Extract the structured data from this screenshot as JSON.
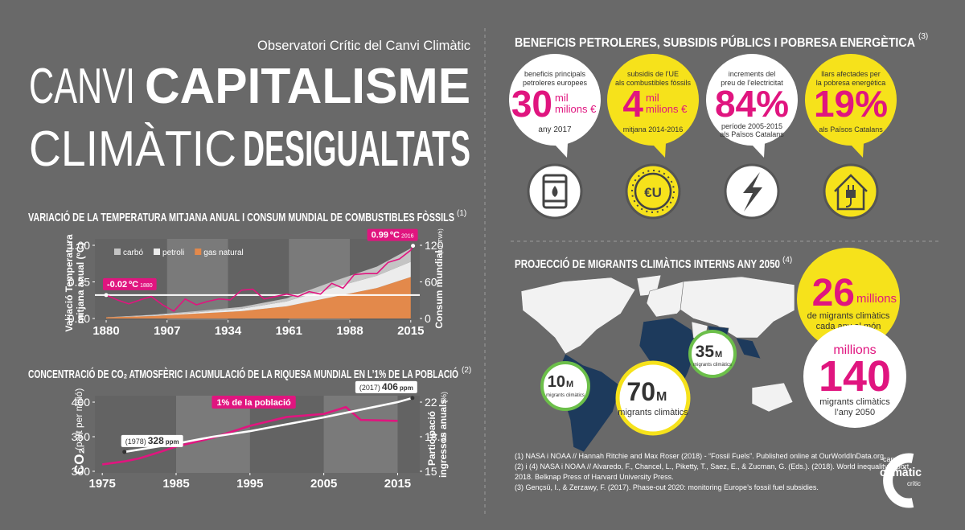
{
  "header": {
    "organization": "Observatori Crític del Canvi Climàtic",
    "words": [
      "CANVI",
      "CAPITALISME",
      "CLIMÀTIC",
      "DESIGUALTATS"
    ]
  },
  "chart_data": [
    {
      "type": "line",
      "title": "VARIACIÓ DE LA TEMPERATURA MITJANA ANUAL I CONSUM MUNDIAL DE COMBUSTIBLES FÒSSILS",
      "note": "(1)",
      "y_label": [
        "Variació Temperatura",
        "mitjana anual (ºC)"
      ],
      "y2_label": "Consum mundial",
      "y2_unit": "(10³ TWh)",
      "xlim": [
        1875,
        2019
      ],
      "xticks": [
        1880,
        1907,
        1934,
        1961,
        1988,
        2015
      ],
      "ylim": [
        -0.5,
        1.0
      ],
      "yticks": [
        {
          "value": -0.5,
          "label": "-0.50"
        },
        0.25,
        {
          "value": 1.0,
          "label": "1.00"
        }
      ],
      "y2lim": [
        0,
        120
      ],
      "y2ticks": [
        0,
        60,
        120
      ],
      "reference_line": true,
      "series": [
        {
          "name": "carbó",
          "type": "area",
          "axis": "y2",
          "color": "#c4c4c4",
          "x": [
            1880,
            1900,
            1920,
            1940,
            1960,
            1980,
            2000,
            2015
          ],
          "values": [
            0,
            1,
            2,
            3,
            5,
            10,
            15,
            22
          ]
        },
        {
          "name": "petroli",
          "type": "area",
          "axis": "y2",
          "color": "#ececec",
          "x": [
            1880,
            1900,
            1920,
            1940,
            1960,
            1980,
            2000,
            2015
          ],
          "values": [
            0,
            1,
            2,
            4,
            8,
            15,
            20,
            25
          ]
        },
        {
          "name": "gas natural",
          "type": "area",
          "axis": "y2",
          "color": "#e3894b",
          "x": [
            1880,
            1900,
            1920,
            1940,
            1960,
            1980,
            2000,
            2015
          ],
          "values": [
            2,
            4,
            8,
            12,
            20,
            35,
            50,
            68
          ]
        },
        {
          "type": "line",
          "color": "#e0157f",
          "x": [
            1880,
            1885,
            1890,
            1895,
            1900,
            1905,
            1910,
            1915,
            1920,
            1925,
            1930,
            1935,
            1940,
            1945,
            1950,
            1955,
            1960,
            1965,
            1970,
            1975,
            1980,
            1985,
            1990,
            1995,
            2000,
            2005,
            2010,
            2015,
            2016
          ],
          "values": [
            -0.02,
            -0.12,
            -0.2,
            -0.12,
            -0.05,
            -0.22,
            -0.35,
            -0.1,
            -0.22,
            -0.15,
            -0.1,
            -0.12,
            0.08,
            0.1,
            -0.1,
            -0.05,
            0.0,
            -0.05,
            0.05,
            0.0,
            0.22,
            0.12,
            0.4,
            0.42,
            0.42,
            0.65,
            0.72,
            0.9,
            0.99
          ]
        }
      ],
      "annotations": [
        {
          "value": -0.02,
          "unit": "ºC",
          "x": 1880
        },
        {
          "value": 0.99,
          "unit": "ºC",
          "x": 2016
        }
      ]
    },
    {
      "type": "line",
      "title": "CONCENTRACIÓ DE CO₂ ATMOSFÈRIC I ACUMULACIÓ DE LA RIQUESA MUNDIAL EN L’1% DE LA POBLACIÓ",
      "note": "(2)",
      "y_label": "CO₂",
      "y_unit": "(part per milió)",
      "y2_label": [
        "Participació",
        "ingressos anuals"
      ],
      "y2_unit": "(%)",
      "xlim": [
        1974,
        2018
      ],
      "xticks": [
        1975,
        1985,
        1995,
        2005,
        2015
      ],
      "ylim": [
        300,
        400
      ],
      "yticks": [
        300,
        350,
        400
      ],
      "y2lim": [
        15,
        22
      ],
      "y2ticks": [
        15,
        18.5,
        22
      ],
      "series": [
        {
          "name": "1% de la població",
          "type": "line",
          "axis": "y2",
          "color": "#e0157f",
          "x": [
            1975,
            1978,
            1980,
            1983,
            1985,
            1990,
            1995,
            2000,
            2005,
            2008,
            2010,
            2015
          ],
          "values": [
            15.7,
            16,
            16.3,
            17,
            17.5,
            18.4,
            19.6,
            20.5,
            20.8,
            21.5,
            20.2,
            20.1
          ]
        },
        {
          "type": "line",
          "color": "#ffffff",
          "x": [
            1978,
            1985,
            1990,
            1995,
            2000,
            2005,
            2010,
            2015,
            2017
          ],
          "values": [
            328,
            340,
            350,
            358,
            368,
            378,
            389,
            400,
            406
          ]
        }
      ],
      "annotations": [
        {
          "x_label": "(1978)",
          "value": 328,
          "unit": "ppm",
          "x": 1978
        },
        {
          "x_label": "(2017)",
          "value": 406,
          "unit": "ppm",
          "x": 2017
        }
      ]
    }
  ],
  "benefits": {
    "title": "BENEFICIS PETROLERES, SUBSIDIS PÚBLICS I POBRESA ENERGÈTICA",
    "note": "(3)",
    "stats": [
      {
        "caption": [
          "beneficis principals",
          "petroleres europees"
        ],
        "number": "30",
        "unit": [
          "mil",
          "milions €"
        ],
        "detail": [
          "any 2017"
        ]
      },
      {
        "caption": [
          "subsidis de l’UE",
          "als combustibles fòssils"
        ],
        "number": "4",
        "unit": [
          "mil",
          "milions €"
        ],
        "detail": [
          "mitjana 2014-2016"
        ]
      },
      {
        "caption": [
          "increments del",
          "preu de l’electricitat"
        ],
        "number": "84%",
        "detail": [
          "període 2005-2015",
          "als Països Catalans"
        ]
      },
      {
        "caption": [
          "llars afectades per",
          "la pobresa energètica"
        ],
        "number": "19%",
        "detail": [
          "als Països Catalans"
        ]
      }
    ],
    "coin_label": "€U"
  },
  "migration": {
    "title": "PROJECCIÓ DE MIGRANTS CLIMÀTICS INTERNS ANY 2050",
    "note": "(4)",
    "regions": [
      {
        "number": "10",
        "unit": "M",
        "caption": "migrants climàtics"
      },
      {
        "number": "70",
        "unit": "M",
        "caption": "migrants climàtics"
      },
      {
        "number": "35",
        "unit": "M",
        "caption": "migrants climàtics"
      }
    ],
    "annual": {
      "number": "26",
      "unit": "millions",
      "caption": [
        "de migrants climàtics",
        "cada any al món"
      ]
    },
    "total": {
      "unit": "millions",
      "number": "140",
      "caption": [
        "migrants climàtics",
        "l’any 2050"
      ]
    }
  },
  "sources": [
    "(1) NASA i NOAA // Hannah Ritchie and Max Roser (2018) - “Fossil Fuels”. Published online at OurWorldInData.org",
    "(2) i (4) NASA i NOAA // Alvaredo, F., Chancel, L., Piketty, T., Saez, E., & Zucman, G. (Eds.). (2018). World inequality report",
    "2018. Belknap Press of Harvard University Press.",
    "(3) Gençsü, I., & Zerzawy, F. (2017). Phase-out 2020: monitoring Europe’s fossil fuel subsidies."
  ],
  "logo": [
    "canvi",
    "climàtic",
    "crític"
  ]
}
